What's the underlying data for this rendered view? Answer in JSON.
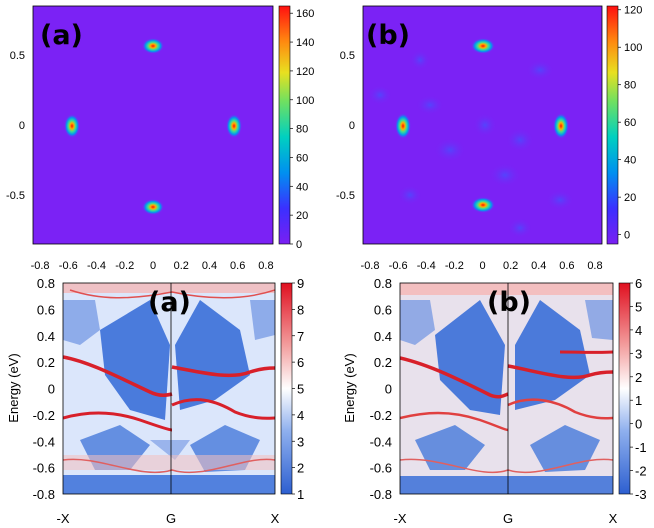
{
  "chart_data": [
    {
      "type": "heatmap",
      "panel": "(a)",
      "description_kind": "spectral map",
      "x_ticks": [
        "-0.8",
        "-0.6",
        "-0.4",
        "-0.2",
        "0",
        "0.2",
        "0.4",
        "0.6",
        "0.8"
      ],
      "y_ticks": [
        "0.5",
        "0",
        "-0.5"
      ],
      "xlim": [
        -0.85,
        0.85
      ],
      "ylim": [
        -0.85,
        0.85
      ],
      "colorbar_ticks": [
        "160",
        "140",
        "120",
        "100",
        "80",
        "60",
        "40",
        "20",
        "0"
      ],
      "colorbar_range": [
        0,
        165
      ],
      "hot_spots": [
        {
          "x": 0,
          "y": 0.57,
          "value": 160
        },
        {
          "x": -0.56,
          "y": 0,
          "value": 160
        },
        {
          "x": 0.56,
          "y": 0,
          "value": 160
        },
        {
          "x": 0,
          "y": -0.57,
          "value": 160
        }
      ]
    },
    {
      "type": "heatmap",
      "panel": "(b)",
      "x_ticks": [
        "-0.8",
        "-0.6",
        "-0.4",
        "-0.2",
        "0",
        "0.2",
        "0.4",
        "0.6",
        "0.8"
      ],
      "y_ticks": [
        "0.5",
        "0",
        "-0.5"
      ],
      "xlim": [
        -0.85,
        0.85
      ],
      "ylim": [
        -0.85,
        0.85
      ],
      "colorbar_ticks": [
        "120",
        "100",
        "80",
        "60",
        "40",
        "20",
        "0"
      ],
      "colorbar_range": [
        -5,
        122
      ],
      "hot_spots": [
        {
          "x": 0,
          "y": 0.56,
          "value": 120
        },
        {
          "x": -0.54,
          "y": 0,
          "value": 120
        },
        {
          "x": 0.54,
          "y": 0,
          "value": 120
        },
        {
          "x": 0,
          "y": -0.56,
          "value": 120
        }
      ]
    },
    {
      "type": "heatmap",
      "panel": "(a)",
      "ylabel": "Energy (eV)",
      "x_ticks": [
        "-X",
        "G",
        "X"
      ],
      "y_ticks": [
        "0.8",
        "0.6",
        "0.4",
        "0.2",
        "0",
        "-0.2",
        "-0.4",
        "-0.6",
        "-0.8"
      ],
      "ylim": [
        -0.8,
        0.8
      ],
      "colorbar_ticks": [
        "9",
        "8",
        "7",
        "6",
        "5",
        "4",
        "3",
        "2",
        "1"
      ],
      "colorbar_range": [
        1,
        9
      ]
    },
    {
      "type": "heatmap",
      "panel": "(b)",
      "ylabel": "Energy (eV)",
      "x_ticks": [
        "-X",
        "G",
        "X"
      ],
      "y_ticks": [
        "0.8",
        "0.6",
        "0.4",
        "0.2",
        "0",
        "-0.2",
        "-0.4",
        "-0.6",
        "-0.8"
      ],
      "ylim": [
        -0.8,
        0.8
      ],
      "colorbar_ticks": [
        "6",
        "5",
        "4",
        "3",
        "2",
        "1",
        "0",
        "-1",
        "-2",
        "-3"
      ],
      "colorbar_range": [
        -3,
        6
      ]
    }
  ],
  "colors": {
    "map_background": "#7b22f5",
    "band_blue": "#3a6fd8",
    "band_red": "#d8202a"
  }
}
